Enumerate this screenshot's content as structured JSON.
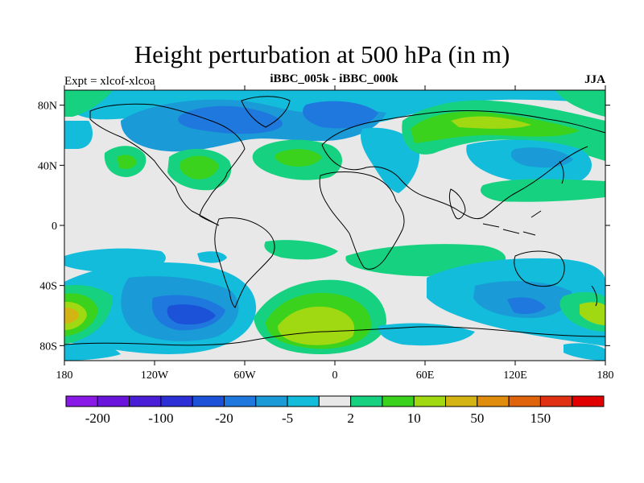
{
  "title": "Height perturbation at 500 hPa (in m)",
  "left_label": "Expt = xlcof-xlcoa",
  "center_label": "iBBC_005k - iBBC_000k",
  "right_label": "JJA",
  "lat_ticks": [
    "80N",
    "40N",
    "0",
    "40S",
    "80S"
  ],
  "lon_ticks": [
    "180",
    "120W",
    "60W",
    "0",
    "60E",
    "120E",
    "180"
  ],
  "colorbar": {
    "colors": [
      "#8a18e6",
      "#6a14dc",
      "#4a1ed6",
      "#2d2fd6",
      "#1b52d8",
      "#1e78de",
      "#1a9ad6",
      "#12bcda",
      "#e8e8e8",
      "#16d280",
      "#3ad21c",
      "#a0d812",
      "#d4b412",
      "#e08c0c",
      "#e0640c",
      "#e03212",
      "#e00000"
    ],
    "labels": [
      "-200",
      "-100",
      "-20",
      "-5",
      "2",
      "10",
      "50",
      "150"
    ]
  },
  "chart_data": {
    "type": "heatmap",
    "title": "Height perturbation at 500 hPa (in m)",
    "subtitle": "iBBC_005k - iBBC_000k",
    "season": "JJA",
    "experiment": "Expt = xlcof-xlcoa",
    "x_range": [
      -180,
      180
    ],
    "y_range": [
      -90,
      90
    ],
    "contour_levels": [
      -200,
      -150,
      -100,
      -50,
      -20,
      -10,
      -5,
      -2,
      2,
      5,
      10,
      20,
      50,
      100,
      150,
      200
    ],
    "features": [
      {
        "region": "North Atlantic / northern Canada",
        "sign": "negative",
        "approx_value": -20
      },
      {
        "region": "Eastern North America ~40N",
        "sign": "positive",
        "approx_value": 10
      },
      {
        "region": "North Pacific ~40N 160W",
        "sign": "positive",
        "approx_value": 5
      },
      {
        "region": "Arctic Siberia",
        "sign": "positive",
        "approx_value": 20
      },
      {
        "region": "South Pacific ~60S 100W",
        "sign": "negative",
        "approx_value": -50
      },
      {
        "region": "South Atlantic ~60S 20W",
        "sign": "positive",
        "approx_value": 20
      },
      {
        "region": "Southern Ocean ~65S 170W",
        "sign": "positive",
        "approx_value": 50
      },
      {
        "region": "Southern Indian Ocean ~55S 120E",
        "sign": "negative",
        "approx_value": -20
      }
    ]
  }
}
